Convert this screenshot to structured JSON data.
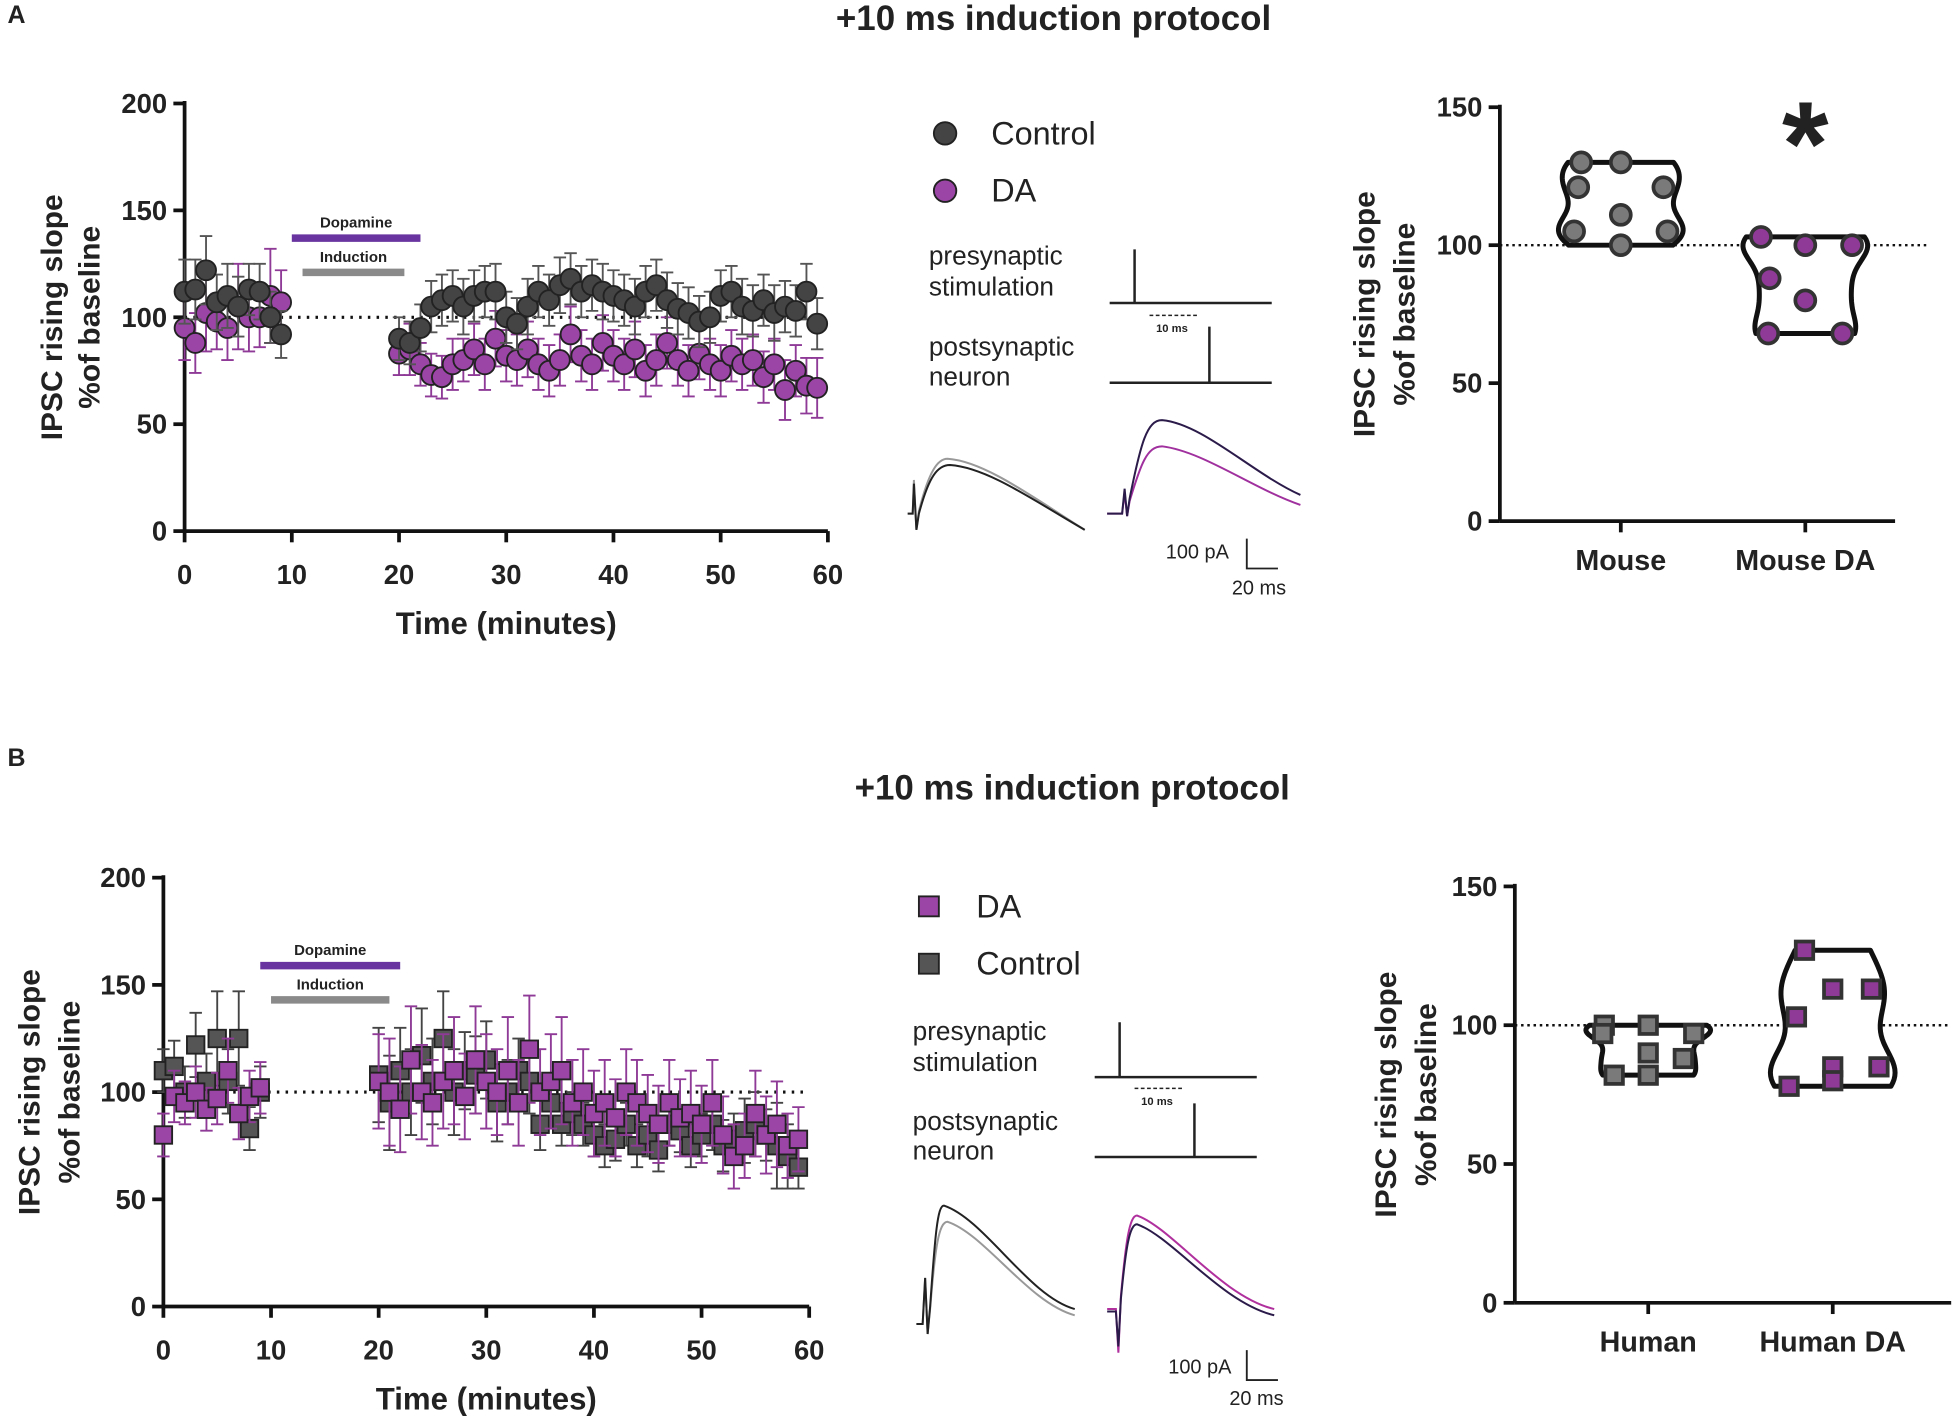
{
  "panels": [
    {
      "label": "A",
      "title": "+10 ms induction protocol",
      "protocol": {
        "pre": [
          "presynaptic",
          "stimulation"
        ],
        "post": [
          "postsynaptic",
          "neuron"
        ],
        "interval": "10 ms"
      },
      "scale": {
        "current": "100 pA",
        "time": "20 ms"
      }
    },
    {
      "label": "B",
      "title": "+10 ms induction protocol",
      "protocol": {
        "pre": [
          "presynaptic",
          "stimulation"
        ],
        "post": [
          "postsynaptic",
          "neuron"
        ],
        "interval": "10 ms"
      },
      "scale": {
        "current": "100 pA",
        "time": "20 ms"
      }
    }
  ],
  "chart_data": [
    {
      "type": "scatter",
      "xlabel": "Time (minutes)",
      "ylabel": [
        "IPSC rising slope",
        "%of baseline"
      ],
      "x": [
        0,
        1,
        2,
        3,
        4,
        5,
        6,
        7,
        8,
        9,
        20,
        21,
        22,
        23,
        24,
        25,
        26,
        27,
        28,
        29,
        30,
        31,
        32,
        33,
        34,
        35,
        36,
        37,
        38,
        39,
        40,
        41,
        42,
        43,
        44,
        45,
        46,
        47,
        48,
        49,
        50,
        51,
        52,
        53,
        54,
        55,
        56,
        57,
        58,
        59
      ],
      "xlim": [
        0,
        60
      ],
      "xticks": [
        0,
        10,
        20,
        30,
        40,
        50,
        60
      ],
      "ylim": [
        0,
        200
      ],
      "yticks": [
        0,
        50,
        100,
        150,
        200
      ],
      "reference": 100,
      "annotations": [
        {
          "label": "Dopamine",
          "x": [
            10,
            22
          ],
          "y": 137,
          "color": "#6a34a0"
        },
        {
          "label": "Induction",
          "x": [
            11,
            20.5
          ],
          "y": 121,
          "color": "#8a8a8a"
        }
      ],
      "series": [
        {
          "name": "Control",
          "color": "#444444",
          "error_color": "#555555",
          "marker": "circle",
          "values": [
            112,
            113,
            122,
            107,
            110,
            105,
            113,
            112,
            100,
            92,
            90,
            88,
            95,
            105,
            108,
            110,
            105,
            110,
            112,
            112,
            100,
            97,
            105,
            112,
            108,
            115,
            118,
            112,
            115,
            112,
            110,
            108,
            105,
            112,
            115,
            108,
            104,
            102,
            98,
            100,
            110,
            112,
            105,
            103,
            108,
            102,
            105,
            103,
            112,
            97
          ],
          "errors": [
            15,
            14,
            16,
            13,
            15,
            14,
            12,
            13,
            12,
            11,
            10,
            10,
            11,
            12,
            12,
            12,
            13,
            12,
            12,
            13,
            12,
            12,
            13,
            12,
            12,
            13,
            12,
            12,
            12,
            13,
            12,
            12,
            13,
            12,
            12,
            13,
            12,
            12,
            12,
            12,
            12,
            12,
            13,
            12,
            12,
            13,
            12,
            12,
            13,
            12
          ]
        },
        {
          "name": "DA",
          "color": "#9b46a6",
          "error_color": "#8e3a96",
          "marker": "circle",
          "values": [
            95,
            88,
            102,
            98,
            95,
            105,
            100,
            100,
            110,
            107,
            83,
            85,
            78,
            73,
            72,
            78,
            80,
            85,
            78,
            90,
            82,
            80,
            85,
            78,
            75,
            80,
            92,
            82,
            78,
            88,
            82,
            78,
            85,
            75,
            80,
            88,
            80,
            75,
            83,
            78,
            75,
            82,
            78,
            80,
            72,
            78,
            66,
            75,
            68,
            67
          ],
          "errors": [
            15,
            14,
            18,
            13,
            15,
            20,
            16,
            14,
            22,
            15,
            10,
            12,
            10,
            10,
            10,
            12,
            10,
            12,
            12,
            13,
            12,
            12,
            13,
            12,
            12,
            12,
            13,
            12,
            12,
            13,
            12,
            12,
            13,
            12,
            12,
            12,
            12,
            12,
            12,
            12,
            12,
            12,
            12,
            12,
            12,
            12,
            14,
            12,
            13,
            14
          ]
        }
      ]
    },
    {
      "type": "violin",
      "ylabel": [
        "IPSC rising slope",
        "%of baseline"
      ],
      "categories": [
        "Mouse",
        "Mouse DA"
      ],
      "values": [
        [
          130,
          130,
          121,
          121,
          111,
          105,
          105,
          100
        ],
        [
          103,
          100,
          100,
          88,
          80,
          68,
          68
        ]
      ],
      "colors": [
        "#7a7a7a",
        "#8e3a96"
      ],
      "marker": "circle",
      "ylim": [
        0,
        150
      ],
      "yticks": [
        0,
        50,
        100,
        150
      ],
      "reference": 100,
      "annotations": [
        {
          "text": "*",
          "category": 1
        }
      ]
    },
    {
      "type": "scatter",
      "xlabel": "Time (minutes)",
      "ylabel": [
        "IPSC rising slope",
        "%of baseline"
      ],
      "x": [
        0,
        1,
        2,
        3,
        4,
        5,
        6,
        7,
        8,
        9,
        20,
        21,
        22,
        23,
        24,
        25,
        26,
        27,
        28,
        29,
        30,
        31,
        32,
        33,
        34,
        35,
        36,
        37,
        38,
        39,
        40,
        41,
        42,
        43,
        44,
        45,
        46,
        47,
        48,
        49,
        50,
        51,
        52,
        53,
        54,
        55,
        56,
        57,
        58,
        59
      ],
      "xlim": [
        0,
        60
      ],
      "xticks": [
        0,
        10,
        20,
        30,
        40,
        50,
        60
      ],
      "ylim": [
        0,
        200
      ],
      "yticks": [
        0,
        50,
        100,
        150,
        200
      ],
      "reference": 100,
      "annotations": [
        {
          "label": "Dopamine",
          "x": [
            9,
            22
          ],
          "y": 159,
          "color": "#6a34a0"
        },
        {
          "label": "Induction",
          "x": [
            10,
            21
          ],
          "y": 143,
          "color": "#8a8a8a"
        }
      ],
      "series": [
        {
          "name": "DA",
          "color": "#9b46a6",
          "error_color": "#8e3a96",
          "marker": "square",
          "values": [
            80,
            98,
            95,
            100,
            92,
            97,
            110,
            90,
            98,
            102,
            105,
            100,
            92,
            115,
            100,
            95,
            105,
            110,
            98,
            115,
            105,
            100,
            110,
            95,
            120,
            100,
            105,
            110,
            95,
            100,
            90,
            95,
            88,
            100,
            95,
            90,
            85,
            95,
            88,
            90,
            85,
            95,
            80,
            70,
            75,
            90,
            80,
            85,
            75,
            78
          ],
          "errors": [
            10,
            12,
            10,
            12,
            10,
            12,
            15,
            12,
            12,
            12,
            22,
            25,
            20,
            25,
            22,
            20,
            22,
            25,
            20,
            25,
            22,
            20,
            25,
            20,
            25,
            20,
            22,
            25,
            20,
            20,
            20,
            20,
            18,
            20,
            20,
            18,
            18,
            20,
            18,
            20,
            18,
            20,
            18,
            15,
            15,
            20,
            18,
            20,
            15,
            15
          ]
        },
        {
          "name": "Control",
          "color": "#555555",
          "error_color": "#444444",
          "marker": "square",
          "values": [
            110,
            112,
            100,
            122,
            105,
            125,
            105,
            125,
            83,
            100,
            108,
            95,
            110,
            100,
            117,
            105,
            125,
            100,
            110,
            108,
            115,
            95,
            100,
            110,
            105,
            85,
            95,
            85,
            90,
            85,
            80,
            75,
            78,
            85,
            75,
            80,
            73,
            85,
            82,
            75,
            80,
            85,
            75,
            78,
            82,
            85,
            80,
            75,
            70,
            65
          ],
          "errors": [
            10,
            12,
            12,
            15,
            13,
            22,
            15,
            22,
            10,
            12,
            22,
            22,
            20,
            20,
            22,
            20,
            22,
            20,
            18,
            18,
            18,
            18,
            15,
            15,
            15,
            12,
            12,
            10,
            10,
            10,
            10,
            10,
            10,
            10,
            10,
            10,
            10,
            10,
            10,
            10,
            10,
            12,
            12,
            12,
            15,
            15,
            12,
            20,
            15,
            10
          ]
        }
      ]
    },
    {
      "type": "violin",
      "ylabel": [
        "IPSC rising slope",
        "%of baseline"
      ],
      "categories": [
        "Human",
        "Human DA"
      ],
      "values": [
        [
          100,
          100,
          97,
          97,
          90,
          88,
          82,
          82
        ],
        [
          127,
          113,
          113,
          103,
          85,
          85,
          78,
          80
        ]
      ],
      "colors": [
        "#7a7a7a",
        "#8e3a96"
      ],
      "marker": "square",
      "ylim": [
        0,
        150
      ],
      "yticks": [
        0,
        50,
        100,
        150
      ],
      "reference": 100
    }
  ]
}
